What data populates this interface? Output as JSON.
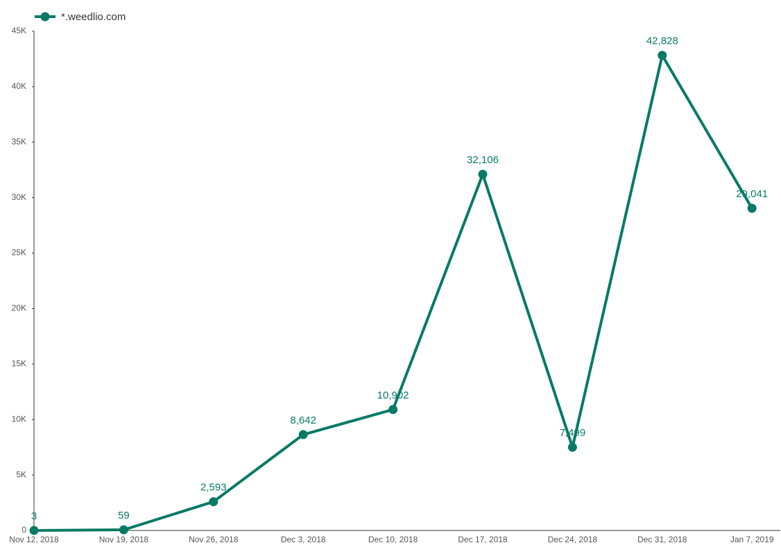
{
  "chart_data": {
    "type": "line",
    "categories": [
      "Nov 12, 2018",
      "Nov 19, 2018",
      "Nov 26, 2018",
      "Dec 3, 2018",
      "Dec 10, 2018",
      "Dec 17, 2018",
      "Dec 24, 2018",
      "Dec 31, 2018",
      "Jan 7, 2019"
    ],
    "series": [
      {
        "name": "*.weedlio.com",
        "color": "#077a66",
        "values": [
          3,
          59,
          2593,
          8642,
          10902,
          32106,
          7499,
          42828,
          29041
        ],
        "value_labels": [
          "3",
          "59",
          "2,593",
          "8,642",
          "10,902",
          "32,106",
          "7,499",
          "42,828",
          "29,041"
        ]
      }
    ],
    "ylim": [
      0,
      45000
    ],
    "yticks": [
      0,
      {
        "value": 5000,
        "label": "5K"
      },
      {
        "value": 10000,
        "label": "10K"
      },
      {
        "value": 15000,
        "label": "15K"
      },
      {
        "value": 20000,
        "label": "20K"
      },
      {
        "value": 25000,
        "label": "25K"
      },
      {
        "value": 30000,
        "label": "30K"
      },
      {
        "value": 35000,
        "label": "35K"
      },
      {
        "value": 40000,
        "label": "40K"
      },
      {
        "value": 45000,
        "label": "45K"
      }
    ],
    "grid": false,
    "legend": "top-left"
  }
}
